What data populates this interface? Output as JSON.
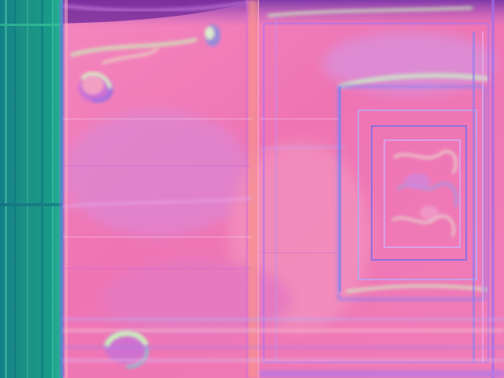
{
  "image": {
    "description_kind": "surface-normal-map",
    "palette": {
      "base": "#f07ab4",
      "base_light": "#f89ac4",
      "magenta": "#c85ad6",
      "violet": "#9d6ef0",
      "teal_dark": "#137f86",
      "teal_mid": "#1e9a8e",
      "teal_light": "#3dd09a",
      "mint": "#b9f5b6",
      "lavender": "#d7a2ee",
      "seam": "#f58a9c",
      "top_purple": "#8e3fb7"
    }
  }
}
